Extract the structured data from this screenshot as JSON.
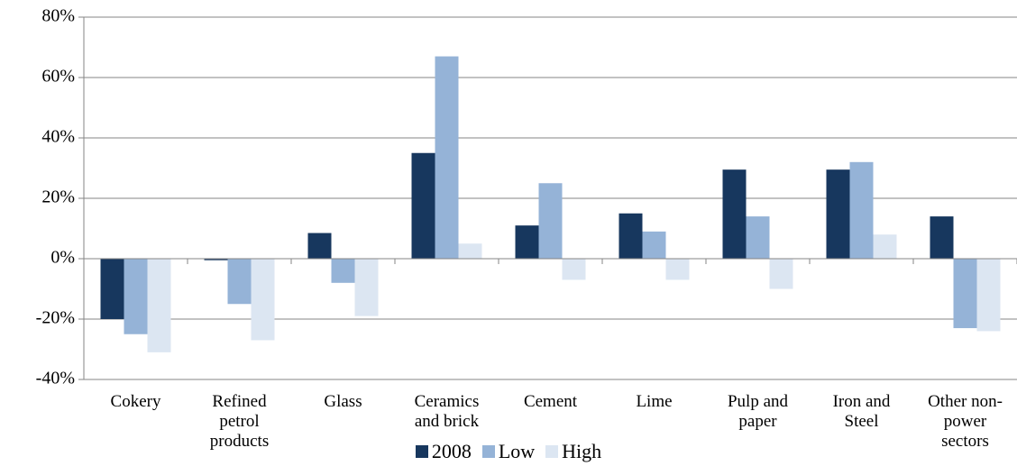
{
  "chart_data": {
    "type": "bar",
    "categories": [
      "Cokery",
      "Refined petrol products",
      "Glass",
      "Ceramics and brick",
      "Cement",
      "Lime",
      "Pulp and paper",
      "Iron and Steel",
      "Other non-power sectors"
    ],
    "series": [
      {
        "name": "2008",
        "color": "#17375e",
        "values": [
          -20,
          -0.5,
          8.5,
          35,
          11,
          15,
          29.5,
          29.5,
          14
        ]
      },
      {
        "name": "Low",
        "color": "#95b3d7",
        "values": [
          -25,
          -15,
          -8,
          67,
          25,
          9,
          14,
          32,
          -23
        ]
      },
      {
        "name": "High",
        "color": "#dce6f2",
        "values": [
          -31,
          -27,
          -19,
          5,
          -7,
          -7,
          -10,
          8,
          -24
        ]
      }
    ],
    "ylim": [
      -40,
      80
    ],
    "yticks": [
      {
        "value": -40,
        "label": "-40%"
      },
      {
        "value": -20,
        "label": "-20%"
      },
      {
        "value": 0,
        "label": "0%"
      },
      {
        "value": 20,
        "label": "20%"
      },
      {
        "value": 40,
        "label": "40%"
      },
      {
        "value": 60,
        "label": "60%"
      },
      {
        "value": 80,
        "label": "80%"
      }
    ],
    "grid": true,
    "legend": "bottom"
  }
}
